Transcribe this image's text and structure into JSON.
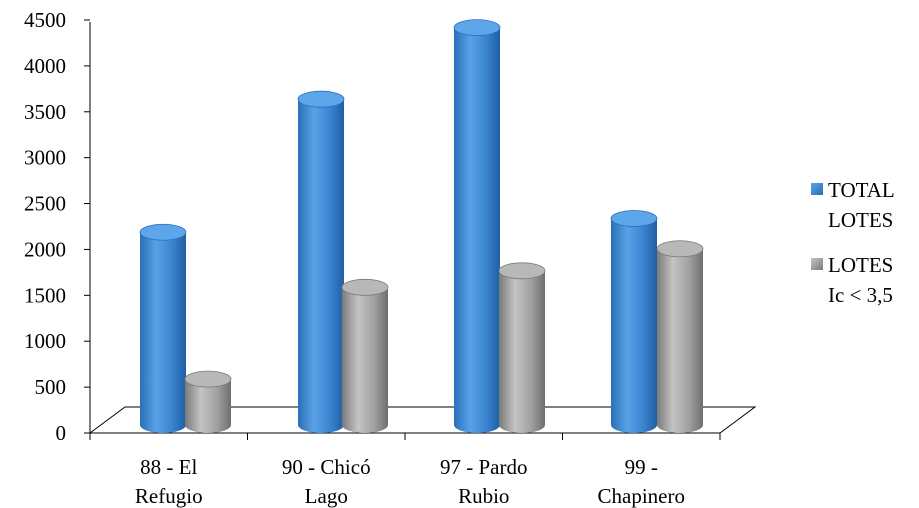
{
  "chart_data": {
    "type": "bar",
    "style": "3d-cylinder",
    "categories": [
      [
        "88 - El",
        "Refugio"
      ],
      [
        "90 - Chicó",
        "Lago"
      ],
      [
        "97 - Pardo",
        "Rubio"
      ],
      [
        "99 -",
        "Chapinero"
      ]
    ],
    "series": [
      {
        "name": [
          "TOTAL",
          "LOTES"
        ],
        "values": [
          2100,
          3550,
          4330,
          2250
        ],
        "color": "#3d86d1"
      },
      {
        "name": [
          "LOTES",
          "Ic < 3,5"
        ],
        "values": [
          500,
          1500,
          1680,
          1920
        ],
        "color": "#9a9a9a"
      }
    ],
    "ylim": [
      0,
      4500
    ],
    "yticks": [
      0,
      500,
      1000,
      1500,
      2000,
      2500,
      3000,
      3500,
      4000,
      4500
    ],
    "legend_position": "right",
    "grid": false
  }
}
